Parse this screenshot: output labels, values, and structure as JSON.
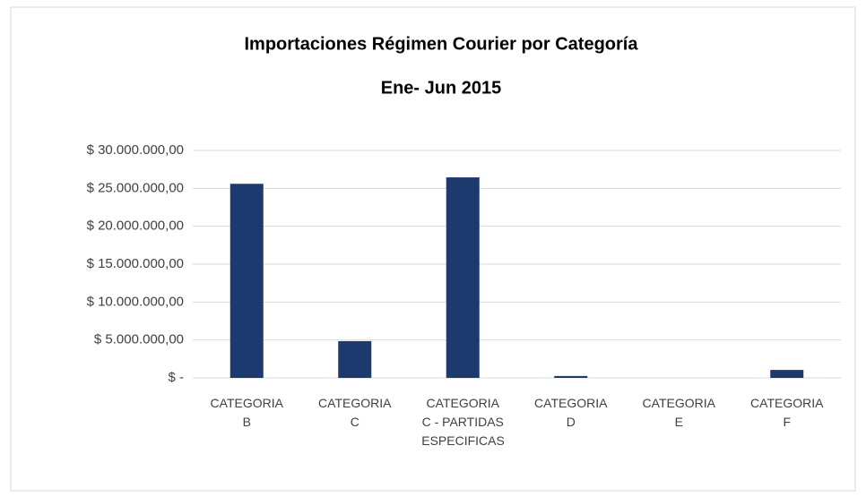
{
  "chart_data": {
    "type": "bar",
    "title": "Importaciones Régimen Courier por Categoría",
    "subtitle": "Ene- Jun 2015",
    "categories": [
      "CATEGORIA B",
      "CATEGORIA C",
      "CATEGORIA C - PARTIDAS ESPECIFICAS",
      "CATEGORIA D",
      "CATEGORIA E",
      "CATEGORIA F"
    ],
    "values": [
      25600000,
      4850000,
      26450000,
      250000,
      0,
      1050000
    ],
    "color": "#1c3a6e",
    "ylim": [
      0,
      30000000
    ],
    "yticks": [
      {
        "value": 0,
        "label": "$ -"
      },
      {
        "value": 5000000,
        "label": "$ 5.000.000,00"
      },
      {
        "value": 10000000,
        "label": "$ 10.000.000,00"
      },
      {
        "value": 15000000,
        "label": "$ 15.000.000,00"
      },
      {
        "value": 20000000,
        "label": "$ 20.000.000,00"
      },
      {
        "value": 25000000,
        "label": "$ 25.000.000,00"
      },
      {
        "value": 30000000,
        "label": "$ 30.000.000,00"
      }
    ],
    "grid": true
  }
}
